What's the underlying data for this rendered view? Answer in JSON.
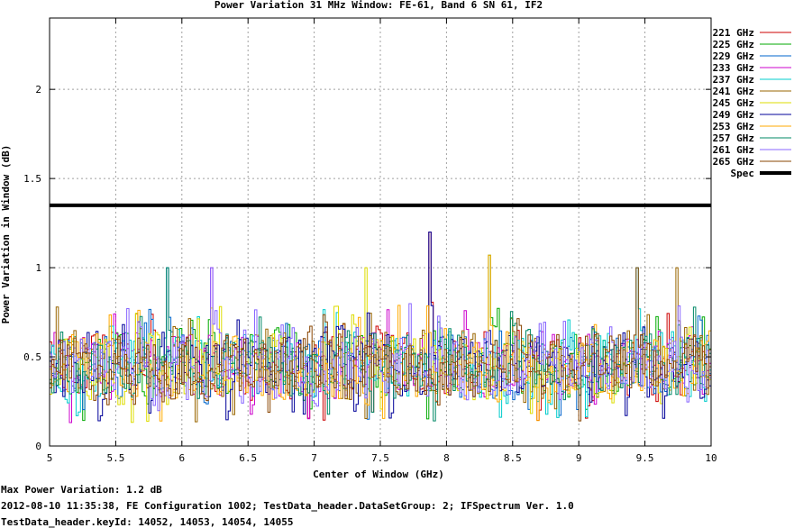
{
  "chart_data": {
    "type": "line",
    "title": "Power Variation 31 MHz Window: FE-61, Band 6 SN 61, IF2",
    "xlabel": "Center of Window (GHz)",
    "ylabel": "Power Variation in Window (dB)",
    "xlim": [
      5,
      10
    ],
    "ylim": [
      0,
      2.4
    ],
    "x_ticks": [
      "5",
      "5.5",
      "6",
      "6.5",
      "7",
      "7.5",
      "8",
      "8.5",
      "9",
      "9.5",
      "10"
    ],
    "y_ticks": [
      "0",
      "0.5",
      "1",
      "1.5",
      "2"
    ],
    "grid": true,
    "legend_position": "right",
    "series": [
      {
        "name": "221 GHz",
        "color": "#cc0000"
      },
      {
        "name": "225 GHz",
        "color": "#00aa00"
      },
      {
        "name": "229 GHz",
        "color": "#0066cc"
      },
      {
        "name": "233 GHz",
        "color": "#cc00cc"
      },
      {
        "name": "237 GHz",
        "color": "#00cccc"
      },
      {
        "name": "241 GHz",
        "color": "#996600"
      },
      {
        "name": "245 GHz",
        "color": "#dddd00"
      },
      {
        "name": "249 GHz",
        "color": "#000099"
      },
      {
        "name": "253 GHz",
        "color": "#ffaa00"
      },
      {
        "name": "257 GHz",
        "color": "#008866"
      },
      {
        "name": "261 GHz",
        "color": "#8866ff"
      },
      {
        "name": "265 GHz",
        "color": "#884400"
      }
    ],
    "spec": {
      "name": "Spec",
      "value": 1.35,
      "color": "#000000"
    },
    "summary": {
      "typical_range": [
        0.2,
        0.7
      ],
      "peaks": [
        {
          "x": 7.87,
          "y": 1.2
        },
        {
          "x": 8.32,
          "y": 1.07
        },
        {
          "x": 5.88,
          "y": 1.0
        },
        {
          "x": 6.22,
          "y": 1.0
        },
        {
          "x": 9.44,
          "y": 1.0
        },
        {
          "x": 9.73,
          "y": 1.0
        },
        {
          "x": 7.38,
          "y": 1.0
        }
      ]
    }
  },
  "footer": {
    "line1": "Max Power Variation: 1.2 dB",
    "line2": "2012-08-10 11:35:38, FE Configuration 1002; TestData_header.DataSetGroup: 2; IFSpectrum Ver. 1.0",
    "line3": "TestData_header.keyId: 14052, 14053, 14054, 14055"
  }
}
